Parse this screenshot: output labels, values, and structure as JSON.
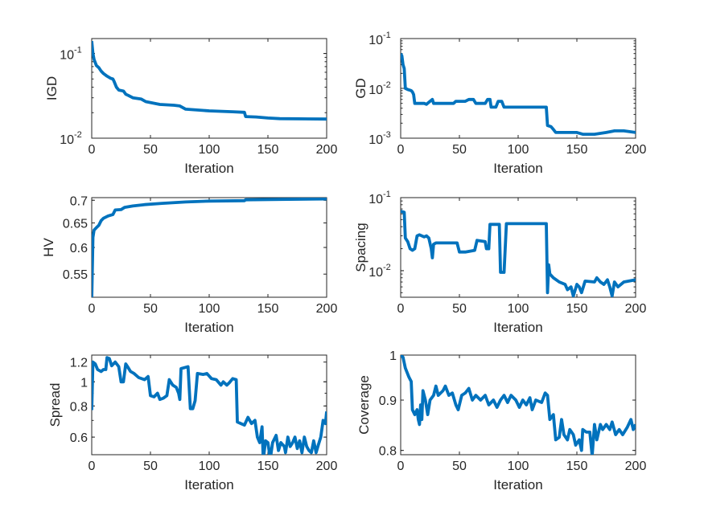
{
  "chart_data": [
    {
      "type": "line",
      "title": "",
      "xlabel": "Iteration",
      "ylabel": "IGD",
      "xlim": [
        0,
        200
      ],
      "ylim": [
        0.01,
        0.15
      ],
      "yscale": "log",
      "grid": false,
      "xticks": [
        "0",
        "50",
        "100",
        "150",
        "200"
      ],
      "yticks": [
        {
          "value": 0.1,
          "base": "10",
          "exp": "-1"
        },
        {
          "value": 0.01,
          "base": "10",
          "exp": "-2"
        }
      ],
      "color": "#0072BD",
      "points": [
        [
          0,
          0.14
        ],
        [
          1,
          0.1
        ],
        [
          2,
          0.085
        ],
        [
          4,
          0.072
        ],
        [
          6,
          0.068
        ],
        [
          8,
          0.062
        ],
        [
          10,
          0.058
        ],
        [
          13,
          0.054
        ],
        [
          16,
          0.051
        ],
        [
          18,
          0.05
        ],
        [
          19,
          0.047
        ],
        [
          21,
          0.04
        ],
        [
          23,
          0.037
        ],
        [
          27,
          0.036
        ],
        [
          29,
          0.033
        ],
        [
          31,
          0.032
        ],
        [
          35,
          0.03
        ],
        [
          42,
          0.029
        ],
        [
          46,
          0.027
        ],
        [
          52,
          0.026
        ],
        [
          58,
          0.025
        ],
        [
          70,
          0.0245
        ],
        [
          75,
          0.024
        ],
        [
          80,
          0.022
        ],
        [
          100,
          0.021
        ],
        [
          120,
          0.0205
        ],
        [
          130,
          0.0202
        ],
        [
          131,
          0.018
        ],
        [
          140,
          0.0178
        ],
        [
          150,
          0.0173
        ],
        [
          160,
          0.017
        ],
        [
          200,
          0.0168
        ]
      ]
    },
    {
      "type": "line",
      "title": "",
      "xlabel": "Iteration",
      "ylabel": "GD",
      "xlim": [
        0,
        200
      ],
      "ylim": [
        0.001,
        0.1
      ],
      "yscale": "log",
      "grid": false,
      "xticks": [
        "0",
        "50",
        "100",
        "150",
        "200"
      ],
      "yticks": [
        {
          "value": 0.1,
          "base": "10",
          "exp": "-1"
        },
        {
          "value": 0.01,
          "base": "10",
          "exp": "-2"
        },
        {
          "value": 0.001,
          "base": "10",
          "exp": "-3"
        }
      ],
      "color": "#0072BD",
      "points": [
        [
          0,
          0.05
        ],
        [
          1,
          0.045
        ],
        [
          2,
          0.03
        ],
        [
          3,
          0.025
        ],
        [
          4,
          0.01
        ],
        [
          6,
          0.0095
        ],
        [
          9,
          0.009
        ],
        [
          10,
          0.0085
        ],
        [
          11,
          0.0075
        ],
        [
          12,
          0.005
        ],
        [
          20,
          0.005
        ],
        [
          22,
          0.0048
        ],
        [
          25,
          0.0055
        ],
        [
          27,
          0.006
        ],
        [
          28,
          0.005
        ],
        [
          45,
          0.005
        ],
        [
          47,
          0.0055
        ],
        [
          55,
          0.0055
        ],
        [
          58,
          0.006
        ],
        [
          62,
          0.006
        ],
        [
          64,
          0.005
        ],
        [
          72,
          0.005
        ],
        [
          74,
          0.006
        ],
        [
          76,
          0.006
        ],
        [
          77,
          0.0042
        ],
        [
          81,
          0.0042
        ],
        [
          83,
          0.0055
        ],
        [
          86,
          0.0055
        ],
        [
          88,
          0.0042
        ],
        [
          124,
          0.0042
        ],
        [
          125,
          0.0018
        ],
        [
          128,
          0.0017
        ],
        [
          130,
          0.0015
        ],
        [
          132,
          0.0013
        ],
        [
          150,
          0.0013
        ],
        [
          155,
          0.0012
        ],
        [
          165,
          0.0012
        ],
        [
          175,
          0.0013
        ],
        [
          182,
          0.0014
        ],
        [
          190,
          0.0014
        ],
        [
          200,
          0.0013
        ]
      ]
    },
    {
      "type": "line",
      "title": "",
      "xlabel": "Iteration",
      "ylabel": "HV",
      "xlim": [
        0,
        200
      ],
      "ylim": [
        0.51,
        0.706
      ],
      "yscale": "log",
      "grid": false,
      "xticks": [
        "0",
        "50",
        "100",
        "150",
        "200"
      ],
      "yticks": [
        {
          "value": 0.7,
          "label": "0.7"
        },
        {
          "value": 0.65,
          "label": "0.65"
        },
        {
          "value": 0.6,
          "label": "0.6"
        },
        {
          "value": 0.55,
          "label": "0.55"
        }
      ],
      "color": "#0072BD",
      "points": [
        [
          0,
          0.505
        ],
        [
          1,
          0.62
        ],
        [
          2,
          0.635
        ],
        [
          4,
          0.64
        ],
        [
          6,
          0.645
        ],
        [
          8,
          0.655
        ],
        [
          10,
          0.66
        ],
        [
          14,
          0.665
        ],
        [
          18,
          0.668
        ],
        [
          20,
          0.678
        ],
        [
          25,
          0.679
        ],
        [
          28,
          0.684
        ],
        [
          35,
          0.687
        ],
        [
          45,
          0.69
        ],
        [
          60,
          0.693
        ],
        [
          80,
          0.696
        ],
        [
          100,
          0.698
        ],
        [
          130,
          0.699
        ],
        [
          131,
          0.701
        ],
        [
          160,
          0.702
        ],
        [
          200,
          0.703
        ]
      ]
    },
    {
      "type": "line",
      "title": "",
      "xlabel": "Iteration",
      "ylabel": "Spacing",
      "xlim": [
        0,
        200
      ],
      "ylim": [
        0.00433,
        0.1
      ],
      "yscale": "log",
      "grid": false,
      "xticks": [
        "0",
        "50",
        "100",
        "150",
        "200"
      ],
      "yticks": [
        {
          "value": 0.1,
          "base": "10",
          "exp": "-1"
        },
        {
          "value": 0.01,
          "base": "10",
          "exp": "-2"
        }
      ],
      "color": "#0072BD",
      "points": [
        [
          0,
          0.065
        ],
        [
          3,
          0.063
        ],
        [
          4,
          0.028
        ],
        [
          6,
          0.025
        ],
        [
          8,
          0.02
        ],
        [
          10,
          0.019
        ],
        [
          12,
          0.02
        ],
        [
          14,
          0.03
        ],
        [
          16,
          0.031
        ],
        [
          20,
          0.029
        ],
        [
          22,
          0.03
        ],
        [
          24,
          0.028
        ],
        [
          26,
          0.02
        ],
        [
          27,
          0.015
        ],
        [
          28,
          0.023
        ],
        [
          30,
          0.024
        ],
        [
          48,
          0.024
        ],
        [
          50,
          0.018
        ],
        [
          55,
          0.018
        ],
        [
          63,
          0.019
        ],
        [
          65,
          0.026
        ],
        [
          72,
          0.025
        ],
        [
          73,
          0.02
        ],
        [
          75,
          0.02
        ],
        [
          76,
          0.043
        ],
        [
          84,
          0.043
        ],
        [
          85,
          0.0095
        ],
        [
          88,
          0.0095
        ],
        [
          90,
          0.044
        ],
        [
          124,
          0.044
        ],
        [
          125,
          0.005
        ],
        [
          126,
          0.012
        ],
        [
          127,
          0.009
        ],
        [
          130,
          0.008
        ],
        [
          135,
          0.007
        ],
        [
          140,
          0.0065
        ],
        [
          142,
          0.0055
        ],
        [
          145,
          0.006
        ],
        [
          147,
          0.0045
        ],
        [
          150,
          0.0065
        ],
        [
          152,
          0.006
        ],
        [
          154,
          0.005
        ],
        [
          157,
          0.0072
        ],
        [
          165,
          0.007
        ],
        [
          167,
          0.008
        ],
        [
          170,
          0.007
        ],
        [
          173,
          0.0065
        ],
        [
          176,
          0.0075
        ],
        [
          178,
          0.006
        ],
        [
          180,
          0.0045
        ],
        [
          182,
          0.007
        ],
        [
          185,
          0.006
        ],
        [
          190,
          0.007
        ],
        [
          200,
          0.0075
        ]
      ]
    },
    {
      "type": "line",
      "title": "",
      "xlabel": "Iteration",
      "ylabel": "Spread",
      "xlim": [
        0,
        200
      ],
      "ylim": [
        0.51,
        1.28
      ],
      "yscale": "log",
      "grid": false,
      "xticks": [
        "0",
        "50",
        "100",
        "150",
        "200"
      ],
      "yticks": [
        {
          "value": 1.2,
          "label": "1.2"
        },
        {
          "value": 1,
          "label": "1"
        },
        {
          "value": 0.8,
          "label": "0.8"
        },
        {
          "value": 0.6,
          "label": "0.6"
        }
      ],
      "color": "#0072BD",
      "points": [
        [
          0,
          0.77
        ],
        [
          1,
          1.2
        ],
        [
          3,
          1.18
        ],
        [
          5,
          1.12
        ],
        [
          8,
          1.1
        ],
        [
          10,
          1.12
        ],
        [
          12,
          1.12
        ],
        [
          13,
          1.25
        ],
        [
          15,
          1.24
        ],
        [
          17,
          1.16
        ],
        [
          20,
          1.2
        ],
        [
          23,
          1.15
        ],
        [
          25,
          1.0
        ],
        [
          27,
          1.0
        ],
        [
          29,
          1.18
        ],
        [
          31,
          1.14
        ],
        [
          33,
          1.1
        ],
        [
          36,
          1.08
        ],
        [
          40,
          1.04
        ],
        [
          45,
          1.02
        ],
        [
          48,
          1.05
        ],
        [
          50,
          0.88
        ],
        [
          53,
          0.87
        ],
        [
          56,
          0.9
        ],
        [
          58,
          0.85
        ],
        [
          61,
          0.86
        ],
        [
          64,
          0.88
        ],
        [
          66,
          1.02
        ],
        [
          69,
          0.97
        ],
        [
          72,
          0.95
        ],
        [
          74,
          0.9
        ],
        [
          75,
          0.85
        ],
        [
          76,
          1.13
        ],
        [
          82,
          1.15
        ],
        [
          84,
          0.78
        ],
        [
          86,
          0.78
        ],
        [
          88,
          0.84
        ],
        [
          90,
          1.08
        ],
        [
          95,
          1.07
        ],
        [
          98,
          1.08
        ],
        [
          102,
          1.03
        ],
        [
          106,
          1.02
        ],
        [
          110,
          0.97
        ],
        [
          112,
          1.0
        ],
        [
          115,
          0.97
        ],
        [
          117,
          0.99
        ],
        [
          120,
          1.03
        ],
        [
          123,
          1.02
        ],
        [
          124,
          0.69
        ],
        [
          127,
          0.68
        ],
        [
          130,
          0.67
        ],
        [
          133,
          0.72
        ],
        [
          136,
          0.68
        ],
        [
          139,
          0.7
        ],
        [
          141,
          0.6
        ],
        [
          143,
          0.57
        ],
        [
          145,
          0.66
        ],
        [
          146,
          0.49
        ],
        [
          148,
          0.58
        ],
        [
          150,
          0.57
        ],
        [
          152,
          0.49
        ],
        [
          154,
          0.57
        ],
        [
          157,
          0.61
        ],
        [
          159,
          0.53
        ],
        [
          161,
          0.57
        ],
        [
          164,
          0.55
        ],
        [
          165,
          0.52
        ],
        [
          167,
          0.6
        ],
        [
          169,
          0.55
        ],
        [
          171,
          0.57
        ],
        [
          173,
          0.6
        ],
        [
          175,
          0.54
        ],
        [
          177,
          0.58
        ],
        [
          179,
          0.52
        ],
        [
          181,
          0.6
        ],
        [
          183,
          0.55
        ],
        [
          185,
          0.53
        ],
        [
          187,
          0.52
        ],
        [
          189,
          0.58
        ],
        [
          191,
          0.52
        ],
        [
          193,
          0.56
        ],
        [
          195,
          0.6
        ],
        [
          197,
          0.7
        ],
        [
          199,
          0.68
        ],
        [
          200,
          0.76
        ]
      ]
    },
    {
      "type": "line",
      "title": "",
      "xlabel": "Iteration",
      "ylabel": "Coverage",
      "xlim": [
        0,
        200
      ],
      "ylim": [
        0.792,
        1.0
      ],
      "yscale": "log",
      "grid": false,
      "xticks": [
        "0",
        "50",
        "100",
        "150",
        "200"
      ],
      "yticks": [
        {
          "value": 1,
          "label": "1"
        },
        {
          "value": 0.9,
          "label": "0.9"
        },
        {
          "value": 0.8,
          "label": "0.8"
        }
      ],
      "color": "#0072BD",
      "points": [
        [
          0,
          1.0
        ],
        [
          2,
          0.995
        ],
        [
          4,
          0.97
        ],
        [
          7,
          0.95
        ],
        [
          9,
          0.94
        ],
        [
          10,
          0.88
        ],
        [
          12,
          0.87
        ],
        [
          14,
          0.88
        ],
        [
          15,
          0.86
        ],
        [
          16,
          0.85
        ],
        [
          17,
          0.89
        ],
        [
          18,
          0.86
        ],
        [
          19,
          0.92
        ],
        [
          21,
          0.9
        ],
        [
          23,
          0.87
        ],
        [
          25,
          0.9
        ],
        [
          28,
          0.91
        ],
        [
          30,
          0.93
        ],
        [
          32,
          0.91
        ],
        [
          36,
          0.92
        ],
        [
          38,
          0.93
        ],
        [
          41,
          0.91
        ],
        [
          44,
          0.915
        ],
        [
          47,
          0.89
        ],
        [
          49,
          0.88
        ],
        [
          52,
          0.91
        ],
        [
          55,
          0.915
        ],
        [
          58,
          0.925
        ],
        [
          61,
          0.9
        ],
        [
          64,
          0.91
        ],
        [
          68,
          0.9
        ],
        [
          72,
          0.91
        ],
        [
          75,
          0.89
        ],
        [
          79,
          0.9
        ],
        [
          82,
          0.885
        ],
        [
          85,
          0.9
        ],
        [
          88,
          0.91
        ],
        [
          91,
          0.895
        ],
        [
          94,
          0.91
        ],
        [
          98,
          0.9
        ],
        [
          101,
          0.885
        ],
        [
          104,
          0.9
        ],
        [
          107,
          0.89
        ],
        [
          110,
          0.905
        ],
        [
          112,
          0.88
        ],
        [
          115,
          0.9
        ],
        [
          120,
          0.895
        ],
        [
          123,
          0.915
        ],
        [
          125,
          0.91
        ],
        [
          127,
          0.86
        ],
        [
          130,
          0.87
        ],
        [
          132,
          0.82
        ],
        [
          135,
          0.825
        ],
        [
          137,
          0.86
        ],
        [
          139,
          0.83
        ],
        [
          142,
          0.82
        ],
        [
          144,
          0.84
        ],
        [
          147,
          0.83
        ],
        [
          149,
          0.81
        ],
        [
          152,
          0.82
        ],
        [
          154,
          0.8
        ],
        [
          155,
          0.84
        ],
        [
          158,
          0.835
        ],
        [
          161,
          0.835
        ],
        [
          163,
          0.79
        ],
        [
          165,
          0.85
        ],
        [
          167,
          0.82
        ],
        [
          170,
          0.85
        ],
        [
          172,
          0.84
        ],
        [
          175,
          0.85
        ],
        [
          178,
          0.84
        ],
        [
          180,
          0.855
        ],
        [
          183,
          0.83
        ],
        [
          186,
          0.84
        ],
        [
          189,
          0.83
        ],
        [
          193,
          0.845
        ],
        [
          196,
          0.86
        ],
        [
          198,
          0.84
        ],
        [
          200,
          0.85
        ]
      ]
    }
  ]
}
